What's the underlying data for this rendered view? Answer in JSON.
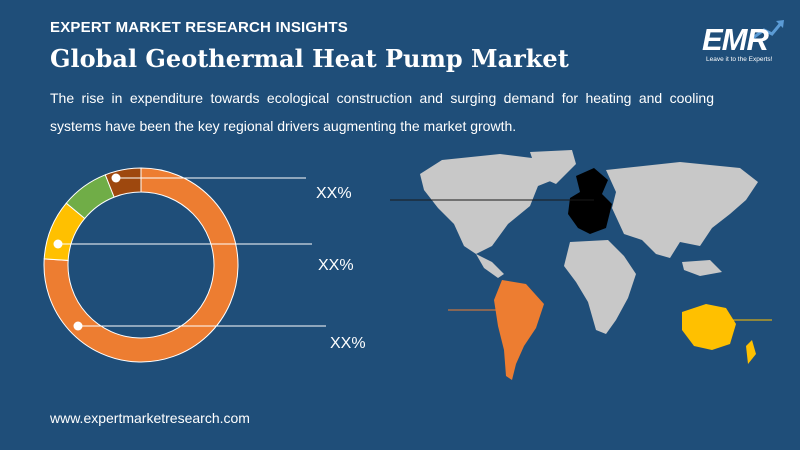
{
  "header": {
    "eyebrow": "EXPERT MARKET RESEARCH INSIGHTS",
    "title": "Global Geothermal Heat Pump Market",
    "description": "The rise in expenditure towards ecological construction and surging demand for heating and cooling systems have been the key regional drivers augmenting the market growth."
  },
  "logo": {
    "text": "EMR",
    "tagline": "Leave it to the Experts!"
  },
  "footer": {
    "url": "www.expertmarketresearch.com"
  },
  "chart_data": {
    "type": "pie",
    "donut": true,
    "slices": [
      {
        "value": 76,
        "color": "#ed7d31"
      },
      {
        "value": 10,
        "color": "#ffc000"
      },
      {
        "value": 8,
        "color": "#70ad47"
      },
      {
        "value": 6,
        "color": "#9e480e"
      }
    ],
    "callouts": [
      "XX%",
      "XX%",
      "XX%"
    ]
  },
  "map": {
    "highlight_colors": {
      "europe": "#000000",
      "south_america": "#ed7d31",
      "oceania": "#ffc000",
      "base": "#c8c8c8"
    }
  }
}
